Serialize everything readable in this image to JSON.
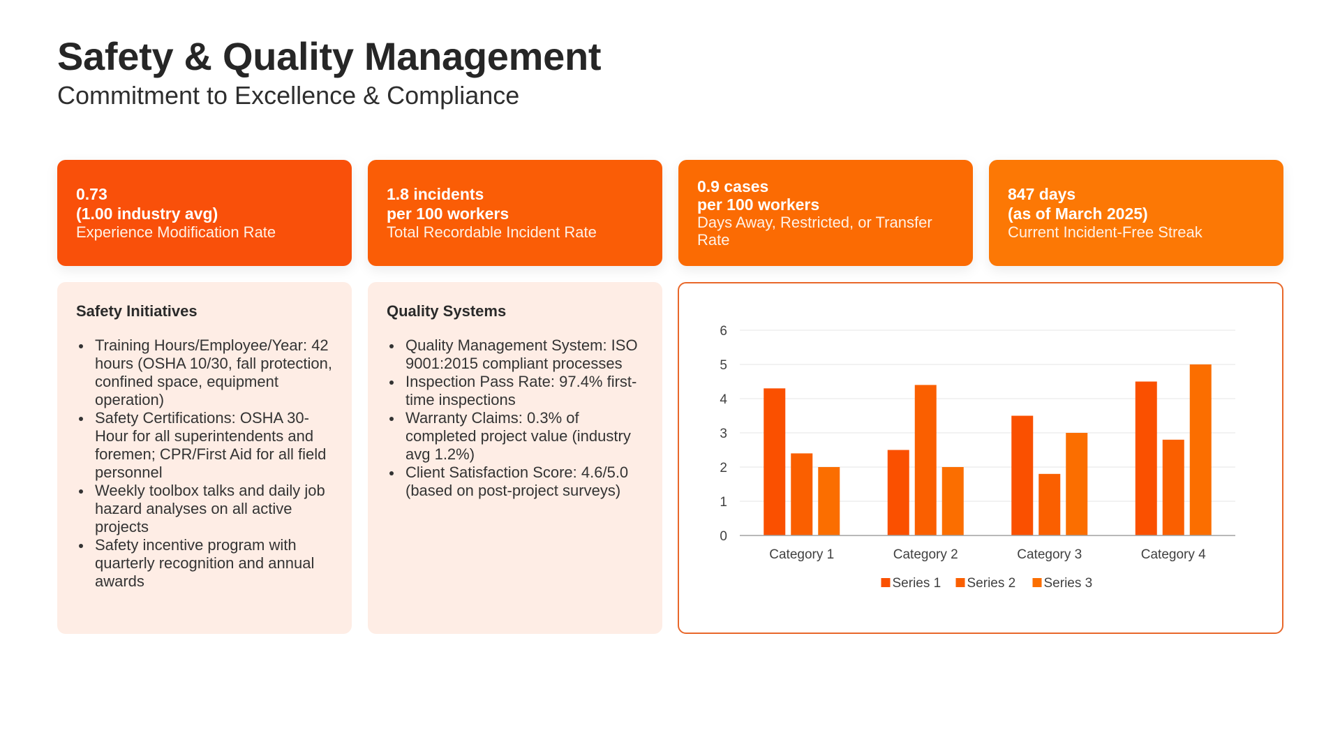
{
  "header": {
    "title": "Safety & Quality Management",
    "subtitle": "Commitment to Excellence & Compliance"
  },
  "kpis": [
    {
      "value_line1": "0.73",
      "value_line2": "(1.00 industry avg)",
      "label": "Experience Modification Rate",
      "color": "#f9500a"
    },
    {
      "value_line1": "1.8 incidents",
      "value_line2": "per 100 workers",
      "label": "Total Recordable Incident Rate",
      "color": "#fa5d06"
    },
    {
      "value_line1": "0.9 cases",
      "value_line2": "per 100 workers",
      "label": "Days Away, Restricted, or Transfer Rate",
      "color": "#fb6b03"
    },
    {
      "value_line1": "847 days",
      "value_line2": "(as of March 2025)",
      "label": "Current Incident-Free Streak",
      "color": "#fc7805"
    }
  ],
  "safety": {
    "heading": "Safety Initiatives",
    "items": [
      "Training Hours/Employee/Year: 42 hours (OSHA 10/30, fall protection, confined space, equipment operation)",
      "Safety Certifications: OSHA 30-Hour for all superintendents and foremen; CPR/First Aid for all field personnel",
      "Weekly toolbox talks and daily job hazard analyses on all active projects",
      "Safety incentive program with quarterly recognition and annual awards"
    ]
  },
  "quality": {
    "heading": "Quality Systems",
    "items": [
      "Quality Management System: ISO 9001:2015 compliant processes",
      "Inspection Pass Rate: 97.4% first-time inspections",
      "Warranty Claims: 0.3% of completed project value (industry avg 1.2%)",
      "Client Satisfaction Score: 4.6/5.0 (based on post-project surveys)"
    ]
  },
  "chart_data": {
    "type": "bar",
    "title": "",
    "xlabel": "",
    "ylabel": "",
    "categories": [
      "Category 1",
      "Category 2",
      "Category 3",
      "Category 4"
    ],
    "series": [
      {
        "name": "Series 1",
        "values": [
          4.3,
          2.5,
          3.5,
          4.5
        ],
        "color": "#fa5000"
      },
      {
        "name": "Series 2",
        "values": [
          2.4,
          4.4,
          1.8,
          2.8
        ],
        "color": "#fa5f00"
      },
      {
        "name": "Series 3",
        "values": [
          2.0,
          2.0,
          3.0,
          5.0
        ],
        "color": "#fb6e00"
      }
    ],
    "ylim": [
      0,
      6
    ],
    "yticks": [
      0,
      1,
      2,
      3,
      4,
      5,
      6
    ],
    "grid": true,
    "legend": "bottom"
  }
}
